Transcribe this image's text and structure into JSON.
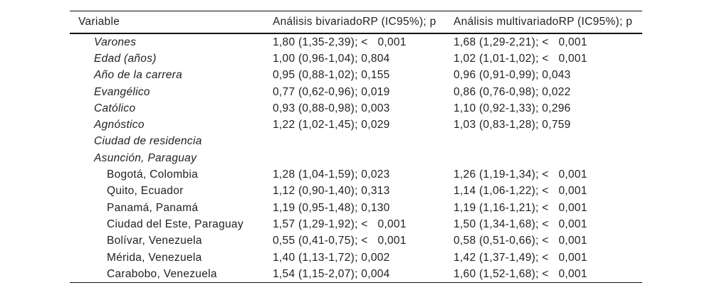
{
  "page": {
    "background_color": "#ffffff",
    "text_color": "#1f1f1f",
    "rule_color": "#111111"
  },
  "table": {
    "columns": [
      "Variable",
      "Análisis bivariadoRP (IC95%); p",
      "Análisis multivariadoRP (IC95%); p"
    ],
    "rows": [
      {
        "variable": "Varones",
        "bivariado": "1,80 (1,35-2,39); <   0,001",
        "multivariado": "1,68 (1,29-2,21); <   0,001"
      },
      {
        "variable": "Edad (años)",
        "bivariado": "1,00 (0,96-1,04); 0,804",
        "multivariado": "1,02 (1,01-1,02); <   0,001"
      },
      {
        "variable": "Año de la carrera",
        "bivariado": "0,95 (0,88-1,02); 0,155",
        "multivariado": "0,96 (0,91-0,99); 0,043"
      },
      {
        "variable": "Evangélico",
        "bivariado": "0,77 (0,62-0,96); 0,019",
        "multivariado": "0,86 (0,76-0,98); 0,022"
      },
      {
        "variable": "Católico",
        "bivariado": "0,93 (0,88-0,98); 0,003",
        "multivariado": "1,10 (0,92-1,33); 0,296"
      },
      {
        "variable": "Agnóstico",
        "bivariado": "1,22 (1,02-1,45); 0,029",
        "multivariado": "1,03 (0,83-1,28); 0,759"
      },
      {
        "variable": "Ciudad de residencia",
        "bivariado": "",
        "multivariado": ""
      },
      {
        "variable": "Asunción, Paraguay",
        "bivariado": "",
        "multivariado": ""
      },
      {
        "variable": "Bogotá, Colombia",
        "bivariado": "1,28 (1,04-1,59); 0,023",
        "multivariado": "1,26 (1,19-1,34); <   0,001"
      },
      {
        "variable": "Quito, Ecuador",
        "bivariado": "1,12 (0,90-1,40); 0,313",
        "multivariado": "1,14 (1,06-1,22); <   0,001"
      },
      {
        "variable": "Panamá, Panamá",
        "bivariado": "1,19 (0,95-1,48); 0,130",
        "multivariado": "1,19 (1,16-1,21); <   0,001"
      },
      {
        "variable": "Ciudad del Este, Paraguay",
        "bivariado": "1,57 (1,29-1,92); <   0,001",
        "multivariado": "1,50 (1,34-1,68); <   0,001"
      },
      {
        "variable": "Bolívar, Venezuela",
        "bivariado": "0,55 (0,41-0,75); <   0,001",
        "multivariado": "0,58 (0,51-0,66); <   0,001"
      },
      {
        "variable": "Mérida, Venezuela",
        "bivariado": "1,40 (1,13-1,72); 0,002",
        "multivariado": "1,42 (1,37-1,49); <   0,001"
      },
      {
        "variable": "Carabobo, Venezuela",
        "bivariado": "1,54 (1,15-2,07); 0,004",
        "multivariado": "1,60 (1,52-1,68); <   0,001"
      }
    ]
  }
}
